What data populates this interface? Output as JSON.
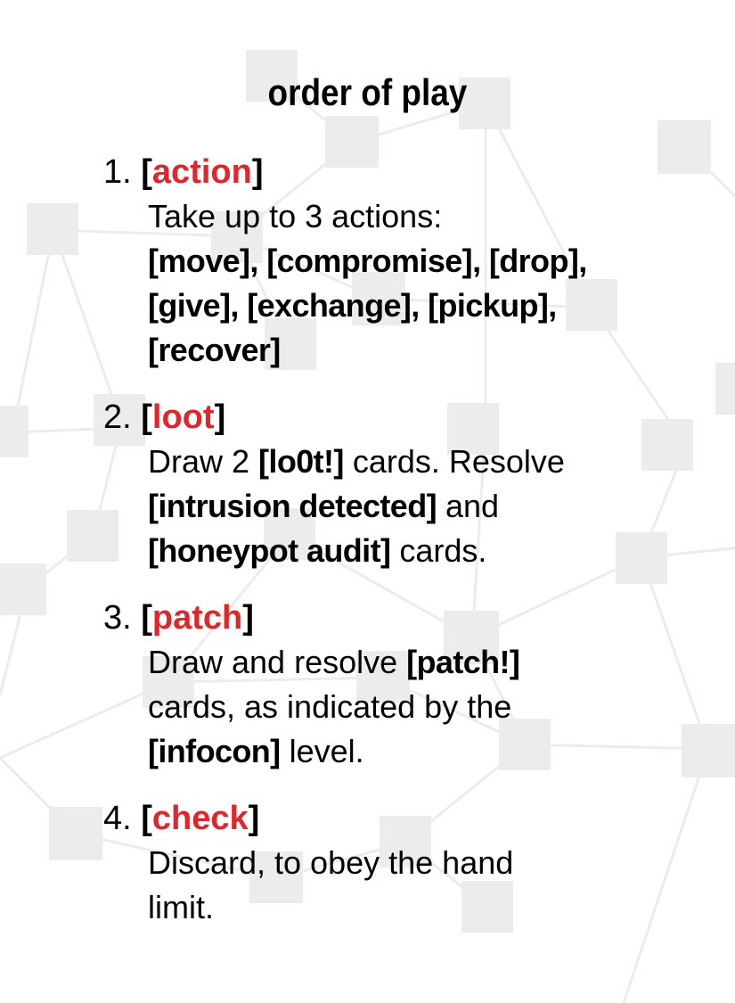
{
  "title": "order of play",
  "steps": [
    {
      "number": "1.",
      "keyword": "action",
      "body": {
        "l1": "Take up to 3 actions:",
        "l2": "[move], [compromise], [drop],",
        "l3": "[give], [exchange], [pickup],",
        "l4": "[recover]"
      }
    },
    {
      "number": "2.",
      "keyword": "loot",
      "body": {
        "l1a": "Draw 2 ",
        "l1b": "[lo0t!]",
        "l1c": " cards. Resolve",
        "l2a": "[intrusion detected]",
        "l2b": " and",
        "l3a": "[honeypot audit]",
        "l3b": " cards."
      }
    },
    {
      "number": "3.",
      "keyword": "patch",
      "body": {
        "l1a": "Draw and resolve ",
        "l1b": "[patch!]",
        "l2": "cards, as indicated by the",
        "l3a": "[infocon]",
        "l3b": " level."
      }
    },
    {
      "number": "4.",
      "keyword": "check",
      "body": {
        "l1": "Discard, to obey the hand",
        "l2": "limit."
      }
    }
  ],
  "colors": {
    "keyword": "#e0262b",
    "background_nodes": "#ececec"
  }
}
